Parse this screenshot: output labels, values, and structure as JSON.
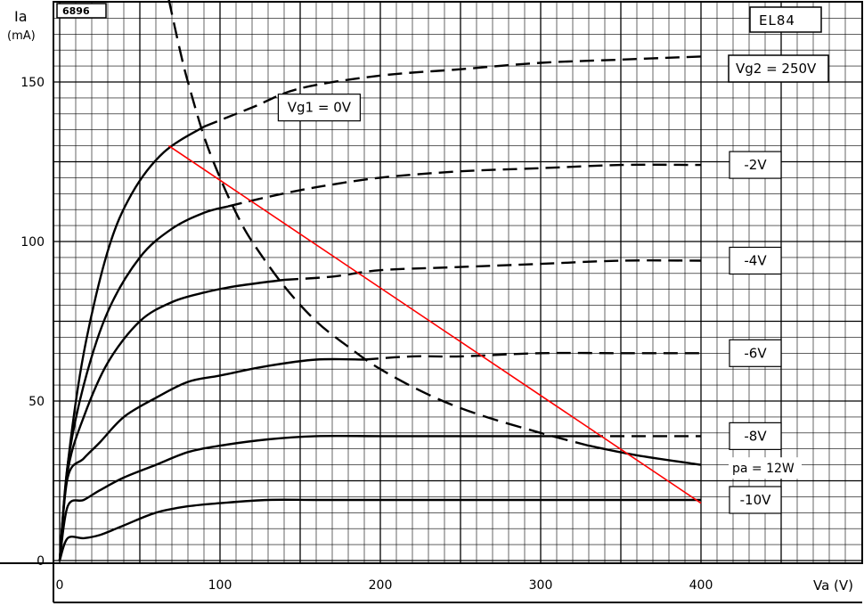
{
  "chart_data": {
    "type": "line",
    "figure_id": "6896",
    "tube": "EL84",
    "vg2_label": "Vg2 = 250V",
    "xlabel": "Va (V)",
    "ylabel_line1": "Ia",
    "ylabel_line2": "(mA)",
    "xlim": [
      -5,
      495
    ],
    "ylim": [
      -3,
      170
    ],
    "x_ticks": [
      0,
      100,
      200,
      300,
      400
    ],
    "y_ticks": [
      0,
      50,
      100,
      150
    ],
    "grid": true,
    "series": [
      {
        "name": "Vg1 = 0V",
        "solid_until": 90,
        "points": [
          [
            0,
            0
          ],
          [
            5,
            30
          ],
          [
            15,
            65
          ],
          [
            30,
            97
          ],
          [
            45,
            115
          ],
          [
            65,
            128
          ],
          [
            90,
            136
          ],
          [
            120,
            142
          ],
          [
            150,
            148
          ],
          [
            200,
            152
          ],
          [
            250,
            154
          ],
          [
            300,
            156
          ],
          [
            350,
            157
          ],
          [
            400,
            158
          ]
        ]
      },
      {
        "name": "-2V",
        "solid_until": 105,
        "points": [
          [
            0,
            0
          ],
          [
            5,
            30
          ],
          [
            15,
            55
          ],
          [
            30,
            78
          ],
          [
            50,
            95
          ],
          [
            70,
            104
          ],
          [
            90,
            109
          ],
          [
            105,
            111
          ],
          [
            130,
            114
          ],
          [
            160,
            117
          ],
          [
            200,
            120
          ],
          [
            250,
            122
          ],
          [
            300,
            123
          ],
          [
            350,
            124
          ],
          [
            400,
            124
          ]
        ]
      },
      {
        "name": "-4V",
        "solid_until": 140,
        "points": [
          [
            0,
            0
          ],
          [
            5,
            28
          ],
          [
            15,
            45
          ],
          [
            30,
            62
          ],
          [
            50,
            75
          ],
          [
            70,
            81
          ],
          [
            90,
            84
          ],
          [
            110,
            86
          ],
          [
            140,
            88
          ],
          [
            170,
            89
          ],
          [
            200,
            91
          ],
          [
            250,
            92
          ],
          [
            300,
            93
          ],
          [
            350,
            94
          ],
          [
            400,
            94
          ]
        ]
      },
      {
        "name": "-6V",
        "solid_until": 190,
        "points": [
          [
            0,
            0
          ],
          [
            5,
            26
          ],
          [
            15,
            32
          ],
          [
            25,
            37
          ],
          [
            40,
            45
          ],
          [
            60,
            51
          ],
          [
            80,
            56
          ],
          [
            100,
            58
          ],
          [
            130,
            61
          ],
          [
            160,
            63
          ],
          [
            190,
            63
          ],
          [
            220,
            64
          ],
          [
            250,
            64
          ],
          [
            300,
            65
          ],
          [
            350,
            65
          ],
          [
            400,
            65
          ]
        ]
      },
      {
        "name": "-8V",
        "solid_until": 330,
        "points": [
          [
            0,
            0
          ],
          [
            5,
            17
          ],
          [
            15,
            19
          ],
          [
            25,
            22
          ],
          [
            40,
            26
          ],
          [
            60,
            30
          ],
          [
            80,
            34
          ],
          [
            100,
            36
          ],
          [
            130,
            38
          ],
          [
            160,
            39
          ],
          [
            200,
            39
          ],
          [
            250,
            39
          ],
          [
            300,
            39
          ],
          [
            330,
            39
          ],
          [
            360,
            39
          ],
          [
            400,
            39
          ]
        ]
      },
      {
        "name": "-10V",
        "solid_until": 400,
        "points": [
          [
            0,
            0
          ],
          [
            5,
            7
          ],
          [
            15,
            7
          ],
          [
            25,
            8
          ],
          [
            40,
            11
          ],
          [
            60,
            15
          ],
          [
            80,
            17
          ],
          [
            100,
            18
          ],
          [
            130,
            19
          ],
          [
            160,
            19
          ],
          [
            200,
            19
          ],
          [
            250,
            19
          ],
          [
            300,
            19
          ],
          [
            350,
            19
          ],
          [
            400,
            19
          ]
        ]
      }
    ],
    "power_limit": {
      "name": "pa = 12W",
      "points": [
        [
          68,
          176
        ],
        [
          75,
          160
        ],
        [
          80,
          150
        ],
        [
          90,
          133
        ],
        [
          100,
          120
        ],
        [
          110,
          109
        ],
        [
          120,
          100
        ],
        [
          140,
          86
        ],
        [
          160,
          75
        ],
        [
          180,
          67
        ],
        [
          200,
          60
        ],
        [
          230,
          52
        ],
        [
          260,
          46
        ],
        [
          300,
          40
        ],
        [
          330,
          36
        ],
        [
          360,
          33
        ],
        [
          400,
          30
        ]
      ]
    },
    "load_line": {
      "color": "#ff0000",
      "points": [
        [
          68,
          130
        ],
        [
          400,
          18
        ]
      ]
    },
    "series_label_positions": {
      "Vg1 = 0V": [
        163,
        142
      ],
      "-2V": [
        415,
        124
      ],
      "-4V": [
        415,
        94
      ],
      "-6V": [
        415,
        65
      ],
      "-8V": [
        415,
        39
      ],
      "-10V": [
        415,
        19
      ]
    },
    "pa_label_position": [
      415,
      29
    ]
  }
}
